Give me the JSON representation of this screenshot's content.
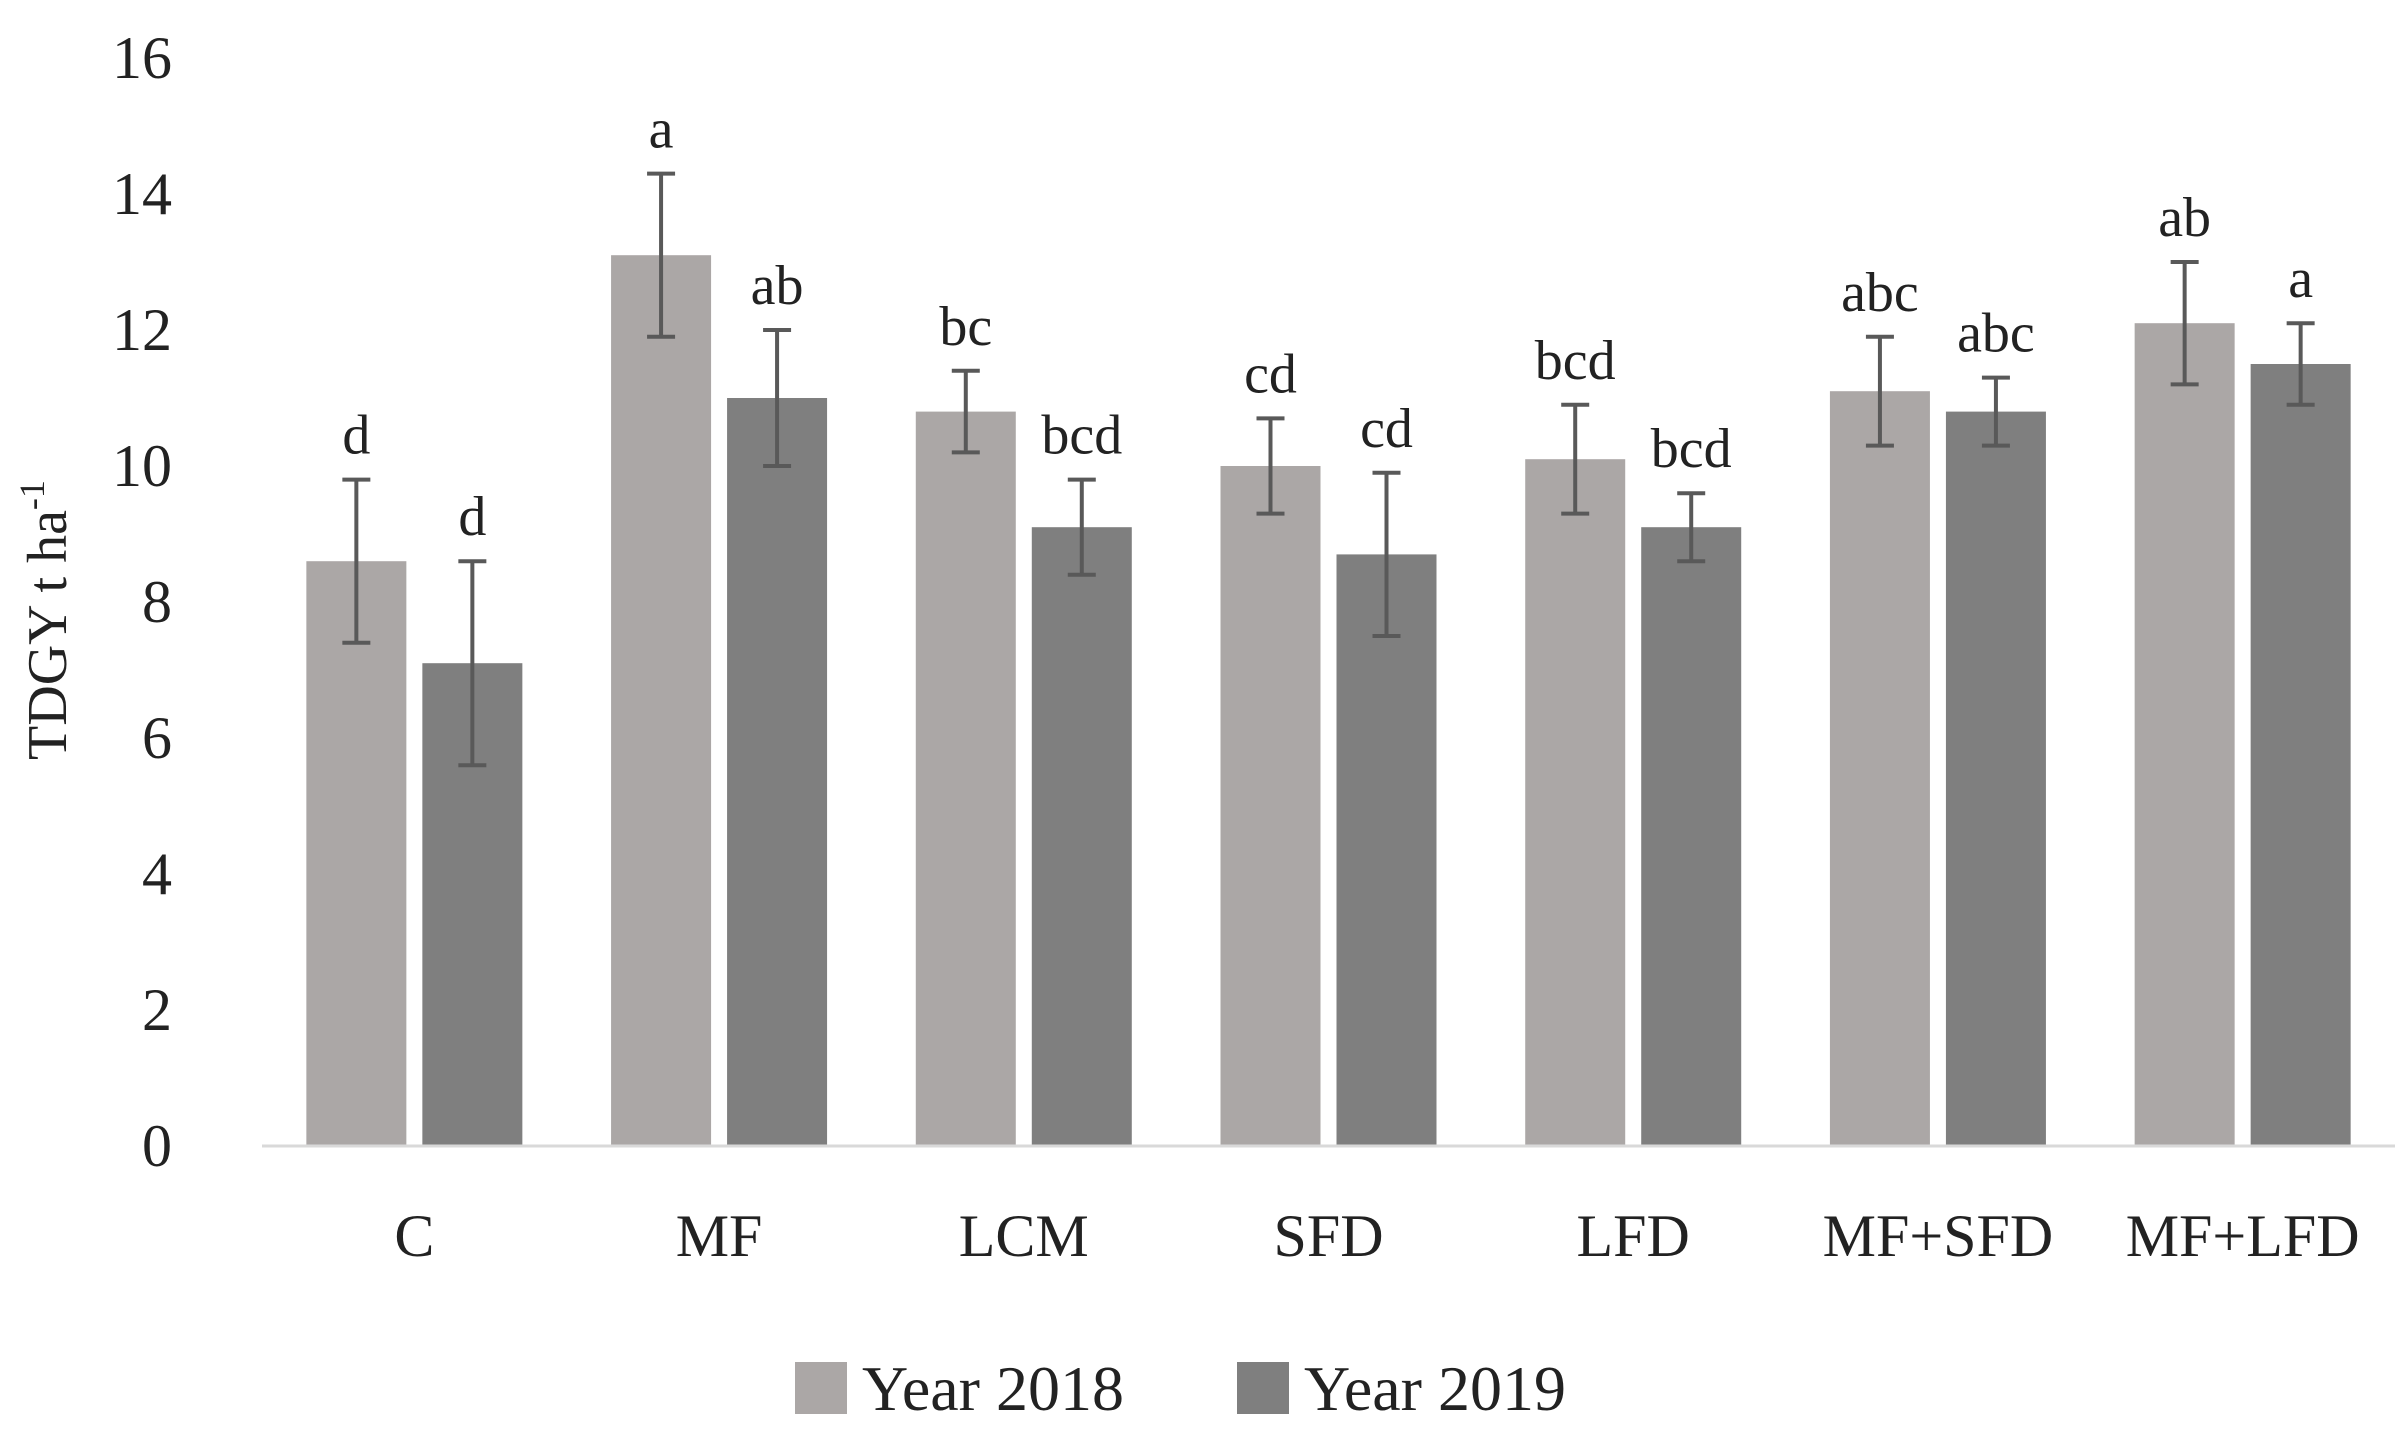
{
  "chart_data": {
    "type": "bar",
    "title": "",
    "xlabel": "",
    "ylabel": "TDGY t ha",
    "ylabel_superscript": "-1",
    "ylim": [
      0,
      16
    ],
    "yticks": [
      "0",
      "2",
      "4",
      "6",
      "8",
      "10",
      "12",
      "14",
      "16"
    ],
    "categories": [
      "C",
      "MF",
      "LCM",
      "SFD",
      "LFD",
      "MF+SFD",
      "MF+LFD"
    ],
    "legend_position": "bottom",
    "grid": false,
    "series": [
      {
        "name": "Year 2018",
        "color": "#aba7a6",
        "values": [
          8.6,
          13.1,
          10.8,
          10.0,
          10.1,
          11.1,
          12.1
        ],
        "errors": [
          1.2,
          1.2,
          0.6,
          0.7,
          0.8,
          0.8,
          0.9
        ],
        "significance": [
          "d",
          "a",
          "bc",
          "cd",
          "bcd",
          "abc",
          "ab"
        ]
      },
      {
        "name": "Year 2019",
        "color": "#7f7f7f",
        "values": [
          7.1,
          11.0,
          9.1,
          8.7,
          9.1,
          10.8,
          11.5
        ],
        "errors": [
          1.5,
          1.0,
          0.7,
          1.2,
          0.5,
          0.5,
          0.6
        ],
        "significance": [
          "d",
          "ab",
          "bcd",
          "cd",
          "bcd",
          "abc",
          "a"
        ]
      }
    ]
  },
  "colors": {
    "axis": "#d9d9d9",
    "error_bar": "#595959",
    "text": "#222222"
  }
}
